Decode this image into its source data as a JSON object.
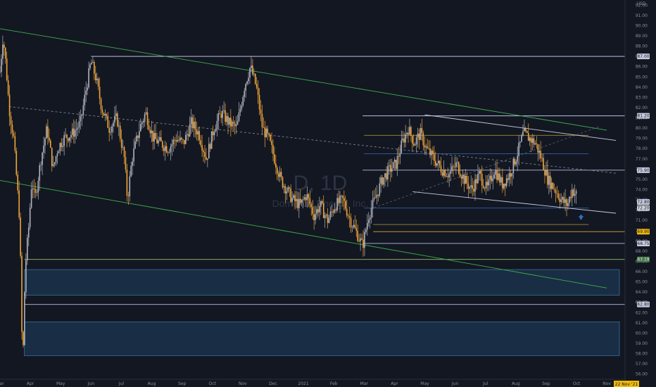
{
  "chart_data": {
    "type": "candlestick",
    "watermark": {
      "symbol": "D, 1D",
      "name": "Dominion Energy, Inc."
    },
    "currency": "USD",
    "ylim": [
      55.5,
      92.5
    ],
    "y_ticks": [
      56,
      57,
      58,
      59,
      60,
      61,
      62,
      63,
      64,
      65,
      66,
      67,
      68,
      69,
      70,
      71,
      72,
      73,
      74,
      75,
      76,
      77,
      78,
      79,
      80,
      81,
      82,
      83,
      84,
      85,
      86,
      87,
      88,
      89,
      90,
      91,
      92
    ],
    "x_months": [
      {
        "label": "Mar",
        "month": 0
      },
      {
        "label": "Apr",
        "month": 1
      },
      {
        "label": "May",
        "month": 2
      },
      {
        "label": "Jun",
        "month": 3
      },
      {
        "label": "Jul",
        "month": 4
      },
      {
        "label": "Aug",
        "month": 5
      },
      {
        "label": "Sep",
        "month": 6
      },
      {
        "label": "Oct",
        "month": 7
      },
      {
        "label": "Nov",
        "month": 8
      },
      {
        "label": "Dec",
        "month": 9
      },
      {
        "label": "2021",
        "month": 10
      },
      {
        "label": "Feb",
        "month": 11
      },
      {
        "label": "Mar",
        "month": 12
      },
      {
        "label": "Apr",
        "month": 13
      },
      {
        "label": "May",
        "month": 14
      },
      {
        "label": "Jun",
        "month": 15
      },
      {
        "label": "Jul",
        "month": 16
      },
      {
        "label": "Aug",
        "month": 17
      },
      {
        "label": "Sep",
        "month": 18
      },
      {
        "label": "Oct",
        "month": 19
      },
      {
        "label": "Nov",
        "month": 20
      }
    ],
    "xlim_months": [
      0,
      20.6
    ],
    "bottom_right_label": "22 Nov '21",
    "close_path": [
      [
        0.0,
        85.5
      ],
      [
        0.1,
        89.0
      ],
      [
        0.2,
        86.0
      ],
      [
        0.3,
        82.0
      ],
      [
        0.45,
        79.0
      ],
      [
        0.55,
        75.0
      ],
      [
        0.65,
        71.0
      ],
      [
        0.72,
        60.0
      ],
      [
        0.78,
        58.2
      ],
      [
        0.82,
        66.0
      ],
      [
        0.95,
        70.5
      ],
      [
        1.05,
        75.0
      ],
      [
        1.15,
        73.0
      ],
      [
        1.35,
        77.0
      ],
      [
        1.55,
        80.0
      ],
      [
        1.75,
        76.0
      ],
      [
        1.9,
        78.0
      ],
      [
        2.1,
        79.0
      ],
      [
        2.4,
        79.5
      ],
      [
        2.65,
        80.5
      ],
      [
        2.85,
        84.0
      ],
      [
        3.0,
        86.5
      ],
      [
        3.15,
        85.0
      ],
      [
        3.35,
        82.0
      ],
      [
        3.6,
        80.0
      ],
      [
        3.85,
        81.0
      ],
      [
        4.1,
        77.0
      ],
      [
        4.2,
        73.0
      ],
      [
        4.35,
        77.0
      ],
      [
        4.6,
        80.0
      ],
      [
        4.8,
        81.5
      ],
      [
        5.05,
        79.0
      ],
      [
        5.3,
        78.5
      ],
      [
        5.55,
        78.0
      ],
      [
        5.8,
        79.0
      ],
      [
        6.05,
        78.5
      ],
      [
        6.3,
        80.5
      ],
      [
        6.55,
        79.5
      ],
      [
        6.8,
        77.0
      ],
      [
        7.05,
        80.0
      ],
      [
        7.3,
        81.5
      ],
      [
        7.55,
        80.5
      ],
      [
        7.8,
        80.0
      ],
      [
        8.05,
        84.0
      ],
      [
        8.25,
        86.0
      ],
      [
        8.45,
        84.0
      ],
      [
        8.65,
        80.0
      ],
      [
        8.85,
        79.0
      ],
      [
        9.05,
        77.0
      ],
      [
        9.25,
        75.0
      ],
      [
        9.45,
        74.0
      ],
      [
        9.65,
        73.0
      ],
      [
        9.9,
        72.5
      ],
      [
        10.1,
        73.5
      ],
      [
        10.35,
        71.5
      ],
      [
        10.55,
        72.5
      ],
      [
        10.8,
        71.0
      ],
      [
        11.05,
        72.5
      ],
      [
        11.3,
        73.0
      ],
      [
        11.55,
        71.0
      ],
      [
        11.8,
        69.5
      ],
      [
        11.95,
        68.5
      ],
      [
        12.15,
        71.5
      ],
      [
        12.35,
        73.0
      ],
      [
        12.6,
        75.0
      ],
      [
        12.85,
        76.0
      ],
      [
        13.05,
        76.5
      ],
      [
        13.25,
        78.5
      ],
      [
        13.45,
        80.0
      ],
      [
        13.65,
        78.5
      ],
      [
        13.85,
        79.5
      ],
      [
        14.05,
        78.0
      ],
      [
        14.3,
        77.0
      ],
      [
        14.55,
        76.0
      ],
      [
        14.8,
        75.5
      ],
      [
        15.05,
        76.5
      ],
      [
        15.3,
        75.0
      ],
      [
        15.55,
        74.0
      ],
      [
        15.8,
        75.5
      ],
      [
        16.05,
        74.0
      ],
      [
        16.3,
        76.0
      ],
      [
        16.55,
        74.5
      ],
      [
        16.8,
        75.5
      ],
      [
        17.05,
        77.5
      ],
      [
        17.25,
        79.5
      ],
      [
        17.45,
        79.0
      ],
      [
        17.65,
        78.5
      ],
      [
        17.85,
        77.0
      ],
      [
        18.05,
        75.0
      ],
      [
        18.3,
        74.0
      ],
      [
        18.5,
        73.0
      ],
      [
        18.7,
        72.5
      ],
      [
        18.85,
        74.0
      ],
      [
        19.0,
        73.5
      ]
    ],
    "price_tags": [
      {
        "value": 87.0,
        "text": "87.00",
        "color": "#c8cbe0",
        "text_color": "#131722"
      },
      {
        "value": 81.2,
        "text": "81.20",
        "color": "#c8cbe0",
        "text_color": "#131722"
      },
      {
        "value": 75.9,
        "text": "75.90",
        "color": "#c8cbe0",
        "text_color": "#131722"
      },
      {
        "value": 72.8,
        "text": "72.80",
        "color": "#c8cbe0",
        "text_color": "#131722"
      },
      {
        "value": 72.2,
        "text": "72.20",
        "color": "#cfd2da",
        "text_color": "#131722"
      },
      {
        "value": 69.9,
        "text": "69.90",
        "color": "#f0b90b",
        "text_color": "#131722"
      },
      {
        "value": 68.75,
        "text": "68.75",
        "color": "#c8cbe0",
        "text_color": "#131722"
      },
      {
        "value": 67.19,
        "text": "67.19",
        "color": "#4a7a4a",
        "text_color": "#e0e3eb"
      },
      {
        "value": 62.8,
        "text": "62.80",
        "color": "#c8cbe0",
        "text_color": "#131722"
      }
    ],
    "zones": [
      {
        "label": "demand-zone-upper",
        "y_top": 66.2,
        "y_bottom": 63.7,
        "x_start": 0.8
      },
      {
        "label": "demand-zone-lower",
        "y_top": 61.1,
        "y_bottom": 57.8,
        "x_start": 0.8
      }
    ],
    "horizontal_levels": [
      {
        "value": 87.0,
        "x_start": 3.0,
        "color": "#b9bce0"
      },
      {
        "value": 67.19,
        "x_start": 0.8,
        "color": "#8fbf6a"
      },
      {
        "value": 62.8,
        "x_start": 0.8,
        "color": "#b9bce0"
      },
      {
        "value": 81.2,
        "x_start": 11.95,
        "color": "#b9bce0"
      },
      {
        "value": 75.9,
        "x_start": 11.95,
        "color": "#b9bce0"
      },
      {
        "value": 69.9,
        "x_start": 12.3,
        "color": "#e0a73a"
      },
      {
        "value": 68.75,
        "x_start": 11.95,
        "color": "#b9bce0"
      },
      {
        "value": 79.3,
        "x_start": 12.0,
        "x_end": 19.4,
        "color": "#a38532"
      },
      {
        "value": 77.5,
        "x_start": 12.0,
        "x_end": 19.4,
        "color": "#2f5fa8"
      },
      {
        "value": 72.2,
        "x_start": 12.0,
        "x_end": 19.4,
        "color": "#2f5fa8"
      },
      {
        "value": 70.6,
        "x_start": 12.3,
        "x_end": 19.4,
        "color": "#a38532"
      }
    ],
    "trendlines": [
      {
        "x1": 0.0,
        "y1": 89.7,
        "x2": 20.0,
        "y2": 79.8,
        "color": "#3fae4a",
        "dashed": false
      },
      {
        "x1": 0.0,
        "y1": 74.9,
        "x2": 20.0,
        "y2": 64.4,
        "color": "#3fae4a",
        "dashed": false
      },
      {
        "x1": 0.3,
        "y1": 82.1,
        "x2": 20.3,
        "y2": 75.6,
        "color": "#7d8190",
        "dashed": true
      },
      {
        "x1": 14.0,
        "y1": 81.3,
        "x2": 20.3,
        "y2": 78.8,
        "color": "#c8cbe0",
        "dashed": false
      },
      {
        "x1": 13.6,
        "y1": 73.8,
        "x2": 20.3,
        "y2": 71.7,
        "color": "#c8cbe0",
        "dashed": false
      },
      {
        "x1": 12.2,
        "y1": 72.1,
        "x2": 19.8,
        "y2": 80.2,
        "color": "#585d6e",
        "dashed": true
      }
    ],
    "arrow_marker": {
      "x": 19.15,
      "y": 71.3,
      "color": "#2f6fd1"
    }
  }
}
